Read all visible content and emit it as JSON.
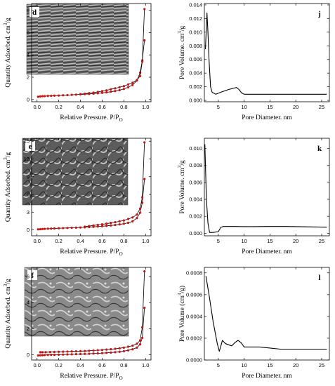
{
  "chart_data": [
    {
      "panel": "d",
      "type": "line",
      "xlabel": "Relative Pressure. P/P",
      "xlabel_sub": "O",
      "ylabel": "Quantity Adsorbed. cm",
      "ylabel_sup": "3",
      "ylabel_tail": "/g",
      "xlim": [
        -0.05,
        1.05
      ],
      "ylim": [
        -0.2,
        8.6
      ],
      "xticks": [
        0.0,
        0.2,
        0.4,
        0.6,
        0.8,
        1.0
      ],
      "xtick_labels": [
        "0.0",
        "0.2",
        "0.4",
        "0.6",
        "0.8",
        "1.0"
      ],
      "yticks": [
        0,
        2,
        4,
        6,
        8
      ],
      "ytick_labels": [
        "0",
        "2",
        "4",
        "6",
        "8"
      ],
      "inset": "SEM micrograph",
      "marker_color": "#cc1111",
      "series": [
        {
          "x": [
            0.01,
            0.03,
            0.05,
            0.07,
            0.1,
            0.13,
            0.16,
            0.2,
            0.24,
            0.28,
            0.32,
            0.36,
            0.4,
            0.44,
            0.48,
            0.52,
            0.56,
            0.6,
            0.64,
            0.68,
            0.72,
            0.76,
            0.8,
            0.84,
            0.88,
            0.92,
            0.95,
            0.97,
            0.99
          ],
          "y": [
            0.25,
            0.28,
            0.3,
            0.3,
            0.32,
            0.33,
            0.35,
            0.36,
            0.38,
            0.4,
            0.42,
            0.44,
            0.46,
            0.48,
            0.5,
            0.53,
            0.56,
            0.6,
            0.64,
            0.7,
            0.76,
            0.84,
            0.95,
            1.1,
            1.3,
            1.7,
            2.4,
            3.5,
            5.3
          ]
        },
        {
          "x": [
            0.99,
            0.97,
            0.95,
            0.92,
            0.88,
            0.84,
            0.8,
            0.76,
            0.72,
            0.68,
            0.64,
            0.6,
            0.56,
            0.52,
            0.48,
            0.44,
            0.4
          ],
          "y": [
            8.1,
            3.4,
            2.1,
            1.75,
            1.5,
            1.35,
            1.2,
            1.1,
            1.0,
            0.92,
            0.82,
            0.75,
            0.68,
            0.62,
            0.57,
            0.52,
            0.48
          ]
        }
      ]
    },
    {
      "panel": "j",
      "type": "line",
      "xlabel": "Pore Diameter. nm",
      "ylabel": "Pore Volume. cm",
      "ylabel_sup": "3",
      "ylabel_tail": "/g",
      "xlim": [
        2.3,
        26.5
      ],
      "ylim": [
        -0.0002,
        0.0142
      ],
      "xticks": [
        5,
        10,
        15,
        20,
        25
      ],
      "xtick_labels": [
        "5",
        "10",
        "15",
        "20",
        "25"
      ],
      "yticks": [
        0,
        0.002,
        0.004,
        0.006,
        0.008,
        0.01,
        0.012,
        0.014
      ],
      "ytick_labels": [
        "0.000",
        "0.002",
        "0.004",
        "0.006",
        "0.008",
        "0.010",
        "0.012",
        "0.014"
      ],
      "series": [
        {
          "x": [
            2.5,
            2.8,
            3.0,
            3.2,
            3.5,
            3.8,
            4.5,
            5.5,
            7,
            8.5,
            9,
            9.5,
            10,
            12,
            15,
            20,
            26
          ],
          "y": [
            0.0075,
            0.0128,
            0.01,
            0.006,
            0.002,
            0.0012,
            0.0009,
            0.0012,
            0.0016,
            0.0019,
            0.0016,
            0.0011,
            0.0009,
            0.0009,
            0.0009,
            0.0009,
            0.0009
          ]
        }
      ]
    },
    {
      "panel": "e",
      "type": "line",
      "xlabel": "Relative Pressure. P/P",
      "xlabel_sub": "O",
      "ylabel": "Quantity Adsorbed. cm",
      "ylabel_sup": "3",
      "ylabel_tail": "/g",
      "xlim": [
        -0.05,
        1.05
      ],
      "ylim": [
        -1,
        15.5
      ],
      "xticks": [
        0.0,
        0.2,
        0.4,
        0.6,
        0.8,
        1.0
      ],
      "xtick_labels": [
        "0.0",
        "0.2",
        "0.4",
        "0.6",
        "0.8",
        "1.0"
      ],
      "yticks": [
        0,
        3,
        6,
        9,
        12,
        15
      ],
      "ytick_labels": [
        "0",
        "3",
        "6",
        "9",
        "12",
        "15"
      ],
      "inset": "SEM micrograph",
      "marker_color": "#cc1111",
      "series": [
        {
          "x": [
            0.01,
            0.03,
            0.05,
            0.07,
            0.1,
            0.13,
            0.16,
            0.2,
            0.24,
            0.28,
            0.32,
            0.36,
            0.4,
            0.44,
            0.48,
            0.52,
            0.56,
            0.6,
            0.64,
            0.68,
            0.72,
            0.76,
            0.8,
            0.84,
            0.88,
            0.92,
            0.95,
            0.97,
            0.99
          ],
          "y": [
            0.1,
            0.12,
            0.15,
            0.17,
            0.2,
            0.22,
            0.25,
            0.28,
            0.3,
            0.33,
            0.36,
            0.38,
            0.41,
            0.44,
            0.48,
            0.52,
            0.57,
            0.62,
            0.68,
            0.75,
            0.83,
            0.93,
            1.05,
            1.2,
            1.45,
            2.0,
            2.9,
            4.6,
            8.6
          ]
        },
        {
          "x": [
            0.99,
            0.97,
            0.95,
            0.92,
            0.88,
            0.84,
            0.8,
            0.76,
            0.72,
            0.68,
            0.64,
            0.6,
            0.56,
            0.52,
            0.48,
            0.44
          ],
          "y": [
            14.8,
            5.5,
            3.6,
            2.6,
            2.1,
            1.85,
            1.6,
            1.45,
            1.3,
            1.18,
            1.05,
            0.95,
            0.85,
            0.75,
            0.65,
            0.55
          ]
        }
      ]
    },
    {
      "panel": "k",
      "type": "line",
      "xlabel": "Pore Diameter. nm",
      "ylabel": "Pore Volume. cm",
      "ylabel_sup": "3",
      "ylabel_tail": "/g",
      "xlim": [
        2.3,
        26.5
      ],
      "ylim": [
        -0.0003,
        0.0112
      ],
      "xticks": [
        5,
        10,
        15,
        20,
        25
      ],
      "xtick_labels": [
        "5",
        "10",
        "15",
        "20",
        "25"
      ],
      "yticks": [
        0,
        0.002,
        0.004,
        0.006,
        0.008,
        0.01
      ],
      "ytick_labels": [
        "0.000",
        "0.002",
        "0.004",
        "0.006",
        "0.008",
        "0.010"
      ],
      "series": [
        {
          "x": [
            2.4,
            2.7,
            3.0,
            3.3,
            4,
            5,
            5.5,
            6,
            8,
            10,
            12,
            15,
            18,
            20,
            23,
            26
          ],
          "y": [
            0.0105,
            0.004,
            0.0012,
            0.0001,
            0.0001,
            0.0002,
            0.0007,
            0.0008,
            0.0008,
            0.00078,
            0.00078,
            0.0008,
            0.0008,
            0.00078,
            0.00075,
            0.00072
          ]
        }
      ]
    },
    {
      "panel": "f",
      "type": "line",
      "xlabel": "Relative Pressure. P/P",
      "xlabel_sub": "O",
      "ylabel": "Quantity Adsorbed. cm",
      "ylabel_sup": "3",
      "ylabel_tail": "/g",
      "xlim": [
        -0.05,
        1.05
      ],
      "ylim": [
        -0.4,
        6.7
      ],
      "xticks": [
        0.0,
        0.2,
        0.4,
        0.6,
        0.8,
        1.0
      ],
      "xtick_labels": [
        "0.0",
        "0.2",
        "0.4",
        "0.6",
        "0.8",
        "1.0"
      ],
      "yticks": [
        0,
        2,
        4,
        6
      ],
      "ytick_labels": [
        "0",
        "2",
        "4",
        "6"
      ],
      "inset": "SEM micrograph",
      "marker_color": "#cc1111",
      "series": [
        {
          "x": [
            0.01,
            0.03,
            0.05,
            0.07,
            0.1,
            0.13,
            0.16,
            0.2,
            0.24,
            0.28,
            0.32,
            0.36,
            0.4,
            0.44,
            0.48,
            0.52,
            0.56,
            0.6,
            0.64,
            0.68,
            0.72,
            0.76,
            0.8,
            0.84,
            0.88,
            0.92,
            0.95,
            0.97,
            0.99
          ],
          "y": [
            -0.05,
            -0.04,
            -0.03,
            -0.02,
            -0.01,
            0.0,
            0.0,
            0.01,
            0.02,
            0.03,
            0.04,
            0.05,
            0.06,
            0.07,
            0.08,
            0.1,
            0.11,
            0.13,
            0.15,
            0.17,
            0.2,
            0.23,
            0.28,
            0.34,
            0.42,
            0.55,
            0.8,
            1.3,
            3.6
          ]
        },
        {
          "x": [
            0.99,
            0.97,
            0.95,
            0.92,
            0.88,
            0.84,
            0.8,
            0.76,
            0.72,
            0.68,
            0.64,
            0.6,
            0.56,
            0.52,
            0.48,
            0.44,
            0.4,
            0.36,
            0.32,
            0.28,
            0.24,
            0.2,
            0.16,
            0.12,
            0.08,
            0.05,
            0.03
          ],
          "y": [
            6.4,
            2.1,
            1.1,
            0.85,
            0.7,
            0.62,
            0.55,
            0.5,
            0.46,
            0.43,
            0.4,
            0.37,
            0.35,
            0.33,
            0.31,
            0.29,
            0.28,
            0.27,
            0.26,
            0.25,
            0.24,
            0.23,
            0.22,
            0.21,
            0.2,
            0.2,
            0.2
          ]
        }
      ]
    },
    {
      "panel": "l",
      "type": "line",
      "xlabel": "Pore Diameter. nm",
      "ylabel": "Pore Volume (cm",
      "ylabel_sup": "3",
      "ylabel_tail": "/g)",
      "xlim": [
        2.3,
        26.5
      ],
      "ylim": [
        0,
        0.00085
      ],
      "xticks": [
        5,
        10,
        15,
        20,
        25
      ],
      "xtick_labels": [
        "5",
        "10",
        "15",
        "20",
        "25"
      ],
      "yticks": [
        0,
        0.0002,
        0.0004,
        0.0006,
        0.0008
      ],
      "ytick_labels": [
        "0.0000",
        "0.0002",
        "0.0004",
        "0.0006",
        "0.0008"
      ],
      "series": [
        {
          "x": [
            2.6,
            3.2,
            4,
            4.8,
            5.2,
            5.8,
            6.4,
            7,
            7.6,
            8.2,
            8.8,
            9.4,
            10,
            11,
            13,
            15,
            17,
            20,
            26
          ],
          "y": [
            0.00077,
            0.0006,
            0.00035,
            0.00015,
            8e-05,
            0.00018,
            0.00015,
            0.00014,
            0.00013,
            0.00016,
            0.00018,
            0.00016,
            0.00012,
            0.00012,
            0.00012,
            0.00011,
            0.0001,
            0.0001,
            0.0001
          ]
        }
      ]
    }
  ]
}
